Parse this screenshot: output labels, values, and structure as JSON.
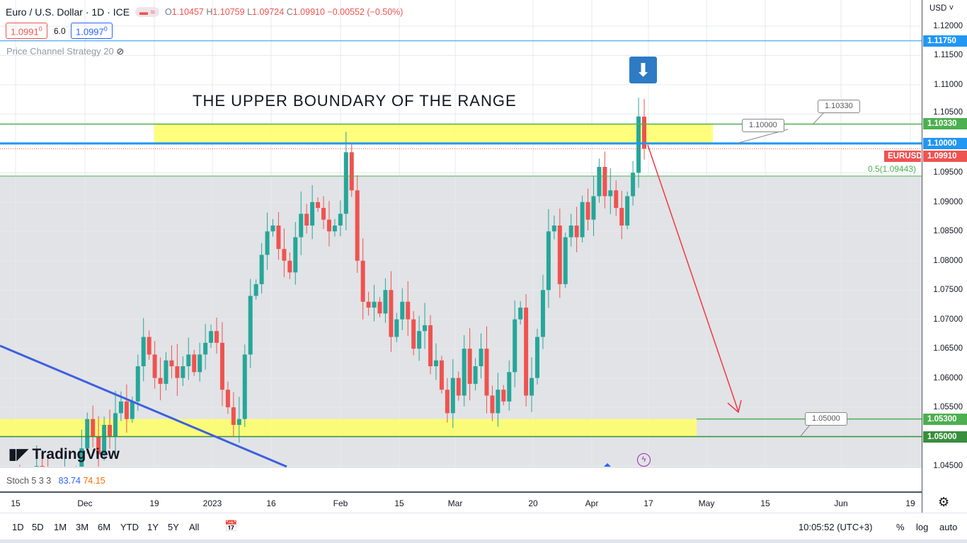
{
  "header": {
    "symbol": "Euro / U.S. Dollar · 1D · ICE",
    "open_label": "O",
    "open": "1.10457",
    "high_label": "H",
    "high": "1.10759",
    "low_label": "L",
    "low": "1.09724",
    "close_label": "C",
    "close": "1.09910",
    "change": "−0.00552 (−0.50%)",
    "sell_price": "1.0991",
    "sell_sup": "0",
    "spread": "6.0",
    "buy_price": "1.0997",
    "buy_sup": "0",
    "indicator": "Price Channel Strategy 20"
  },
  "annotation_text": "THE UPPER BOUNDARY OF THE RANGE",
  "callouts": [
    "1.10330",
    "1.10000",
    "1.05000"
  ],
  "fib_label": "0.5(1.09443)",
  "price_axis": {
    "currency": "USD",
    "ticks": [
      "1.12000",
      "1.11500",
      "1.11000",
      "1.10500",
      "1.09500",
      "1.09000",
      "1.08500",
      "1.08000",
      "1.07500",
      "1.07000",
      "1.06500",
      "1.06000",
      "1.05500",
      "1.04500"
    ],
    "labels": [
      {
        "text": "1.11750",
        "color": "#2196f3"
      },
      {
        "text": "1.10330",
        "color": "#4caf50"
      },
      {
        "text": "1.10000",
        "color": "#2196f3"
      },
      {
        "text": "1.09910",
        "color": "#ef5350"
      },
      {
        "text": "1.05300",
        "color": "#4caf50"
      },
      {
        "text": "1.05000",
        "color": "#388e3c"
      }
    ],
    "symbol_tag": "EURUSD"
  },
  "stoch": {
    "name": "Stoch 5 3 3",
    "k": "83.74",
    "d": "74.15"
  },
  "time_axis": [
    "15",
    "Dec",
    "19",
    "2023",
    "16",
    "Feb",
    "15",
    "Mar",
    "20",
    "Apr",
    "17",
    "May",
    "15",
    "Jun",
    "19"
  ],
  "ranges": [
    "1D",
    "5D",
    "1M",
    "3M",
    "6M",
    "YTD",
    "1Y",
    "5Y",
    "All"
  ],
  "clock": "10:05:52 (UTC+3)",
  "scale_buttons": [
    "%",
    "log",
    "auto"
  ],
  "logo": "TradingView",
  "chart_data": {
    "type": "candlestick",
    "ylim": [
      1.045,
      1.12
    ],
    "last_bar": {
      "open": 1.10457,
      "high": 1.10759,
      "low": 1.09724,
      "close": 1.0991
    },
    "closes": [
      1.04,
      1.042,
      1.038,
      1.035,
      1.041,
      1.045,
      1.044,
      1.04,
      1.038,
      1.041,
      1.044,
      1.04,
      1.043,
      1.048,
      1.053,
      1.05,
      1.047,
      1.052,
      1.05,
      1.054,
      1.056,
      1.053,
      1.056,
      1.062,
      1.067,
      1.064,
      1.06,
      1.059,
      1.063,
      1.062,
      1.06,
      1.062,
      1.064,
      1.061,
      1.064,
      1.066,
      1.068,
      1.066,
      1.058,
      1.055,
      1.052,
      1.053,
      1.064,
      1.074,
      1.076,
      1.081,
      1.085,
      1.086,
      1.082,
      1.08,
      1.078,
      1.084,
      1.088,
      1.086,
      1.09,
      1.089,
      1.087,
      1.085,
      1.086,
      1.088,
      1.0985,
      1.092,
      1.08,
      1.073,
      1.072,
      1.073,
      1.071,
      1.075,
      1.067,
      1.07,
      1.073,
      1.07,
      1.065,
      1.068,
      1.069,
      1.062,
      1.063,
      1.058,
      1.054,
      1.06,
      1.057,
      1.065,
      1.059,
      1.062,
      1.065,
      1.057,
      1.054,
      1.058,
      1.056,
      1.061,
      1.07,
      1.072,
      1.057,
      1.06,
      1.067,
      1.075,
      1.085,
      1.086,
      1.076,
      1.084,
      1.086,
      1.084,
      1.09,
      1.087,
      1.091,
      1.096,
      1.091,
      1.092,
      1.089,
      1.086,
      1.091,
      1.095,
      1.1046,
      1.0991
    ],
    "levels": {
      "resistance_top": 1.1033,
      "resistance": 1.1,
      "support_top": 1.053,
      "support": 1.05,
      "fib_05": 1.09443,
      "upper": 1.1175
    }
  }
}
